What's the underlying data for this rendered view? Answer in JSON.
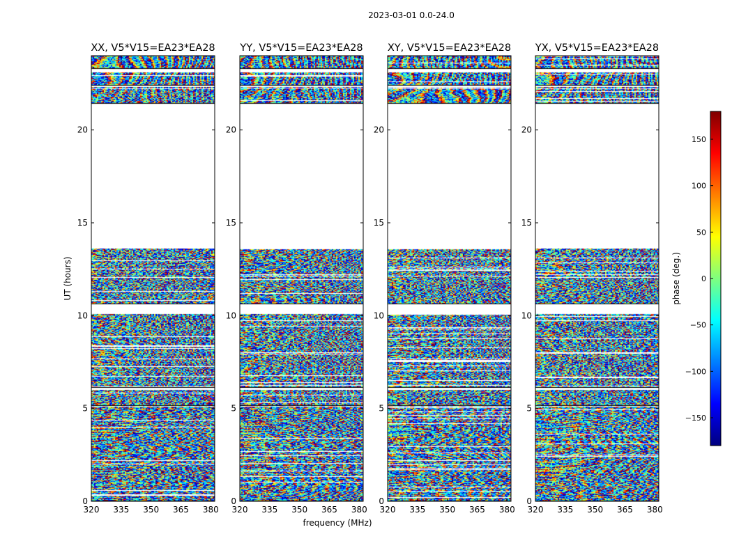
{
  "figure_title": "2023-03-01 0.0-24.0",
  "chart_data": {
    "type": "heatmap",
    "title": "2023-03-01 0.0-24.0",
    "xlabel": "frequency (MHz)",
    "ylabel": "UT (hours)",
    "xlim": [
      320,
      382
    ],
    "ylim": [
      0,
      24
    ],
    "xticks": [
      320,
      335,
      350,
      365,
      380
    ],
    "yticks": [
      0,
      5,
      10,
      15,
      20
    ],
    "panels": [
      {
        "title": "XX, V5*V15=EA23*EA28",
        "polarization": "XX"
      },
      {
        "title": "YY, V5*V15=EA23*EA28",
        "polarization": "YY"
      },
      {
        "title": "XY, V5*V15=EA23*EA28",
        "polarization": "XY"
      },
      {
        "title": "YX, V5*V15=EA23*EA28",
        "polarization": "YX"
      }
    ],
    "data_time_ranges_hours": [
      [
        0,
        5.1
      ],
      [
        5.15,
        6.0
      ],
      [
        6.1,
        10.1
      ],
      [
        10.6,
        13.6
      ],
      [
        21.4,
        22.3
      ],
      [
        22.4,
        23.1
      ],
      [
        23.3,
        24.0
      ]
    ],
    "colorbar": {
      "label": "phase (deg.)",
      "range": [
        -180,
        180
      ],
      "ticks": [
        -150,
        -100,
        -50,
        0,
        50,
        100,
        150
      ],
      "tick_labels": [
        "−150",
        "−100",
        "−50",
        "0",
        "50",
        "100",
        "150"
      ],
      "colormap": [
        "#00007f",
        "#0000ff",
        "#007fff",
        "#00ffff",
        "#7fff7f",
        "#ffff00",
        "#ff7f00",
        "#ff0000",
        "#7f0000"
      ]
    }
  }
}
